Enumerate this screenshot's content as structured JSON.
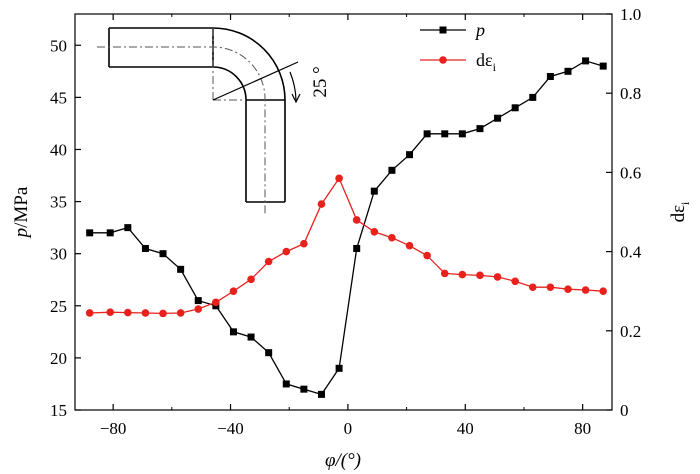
{
  "chart_data": {
    "type": "line",
    "x": [
      -88,
      -81,
      -75,
      -69,
      -63,
      -57,
      -51,
      -45,
      -39,
      -33,
      -27,
      -21,
      -15,
      -9,
      -3,
      3,
      9,
      15,
      21,
      27,
      33,
      39,
      45,
      51,
      57,
      63,
      69,
      75,
      81,
      87
    ],
    "series": [
      {
        "name": "p",
        "axis": "left",
        "color": "#000000",
        "marker": "square",
        "values": [
          32,
          32,
          32.5,
          30.5,
          30,
          28.5,
          25.5,
          25,
          22.5,
          22,
          20.5,
          17.5,
          17,
          16.5,
          19,
          30.5,
          36,
          38,
          39.5,
          41.5,
          41.5,
          41.5,
          42,
          43,
          44,
          45,
          47,
          47.5,
          48.5,
          48
        ]
      },
      {
        "name": "dεi",
        "axis": "right",
        "color": "#e8211d",
        "marker": "circle",
        "values": [
          0.245,
          0.247,
          0.246,
          0.245,
          0.244,
          0.245,
          0.255,
          0.272,
          0.3,
          0.33,
          0.375,
          0.4,
          0.42,
          0.52,
          0.585,
          0.48,
          0.45,
          0.435,
          0.415,
          0.39,
          0.345,
          0.342,
          0.34,
          0.336,
          0.325,
          0.31,
          0.31,
          0.305,
          0.303,
          0.3
        ]
      }
    ],
    "xlim": [
      -93,
      90
    ],
    "ylim": [
      15,
      53
    ],
    "y2lim": [
      0,
      1.0
    ],
    "xticks": [
      -80,
      -40,
      0,
      40,
      80
    ],
    "xtick_labels": [
      "−80",
      "−40",
      "0",
      "40",
      "80"
    ],
    "yticks": [
      15,
      20,
      25,
      30,
      35,
      40,
      45,
      50
    ],
    "y2ticks": [
      0,
      0.2,
      0.4,
      0.6,
      0.8,
      1.0
    ],
    "y2tick_labels": [
      "0",
      "0.2",
      "0.4",
      "0.6",
      "0.8",
      "1.0"
    ],
    "xlabel": "φ/(°)",
    "ylabel": {
      "main": "p",
      "suffix": "/MPa"
    },
    "y2label": {
      "main": "dε",
      "sub": "i"
    },
    "legend": {
      "position": "top-right",
      "entries": [
        {
          "main": "p",
          "sub": ""
        },
        {
          "main": "dε",
          "sub": "i"
        }
      ]
    },
    "inset": {
      "angle_label": "25 °"
    }
  }
}
